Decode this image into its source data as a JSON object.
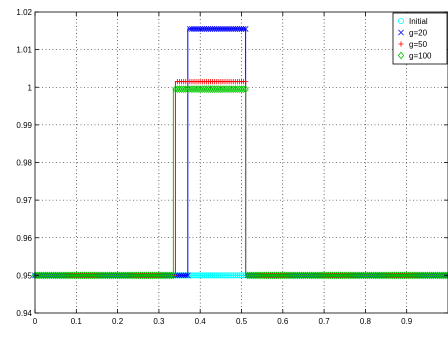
{
  "chart_data": {
    "type": "line",
    "title": "",
    "xlabel": "",
    "ylabel": "",
    "xlim": [
      0,
      1
    ],
    "ylim": [
      0.94,
      1.02
    ],
    "grid": true,
    "legend_position": "top-right",
    "x_ticks": [
      0,
      0.1,
      0.2,
      0.3,
      0.4,
      0.5,
      0.6,
      0.7,
      0.8,
      0.9
    ],
    "x_tick_labels": [
      "0",
      "0.1",
      "0.2",
      "0.3",
      "0.4",
      "0.5",
      "0.6",
      "0.7",
      "0.8",
      "0.9"
    ],
    "y_ticks": [
      0.94,
      0.95,
      0.96,
      0.97,
      0.98,
      0.99,
      1.0,
      1.01,
      1.02
    ],
    "y_tick_labels": [
      "0.94",
      "0.95",
      "0.96",
      "0.97",
      "0.98",
      "0.99",
      "1",
      "1.01",
      "1.02"
    ],
    "marker_spacing": 0.005,
    "series": [
      {
        "name": "Initial",
        "color": "#00ffff",
        "marker": "circle",
        "x": [
          0,
          0.33,
          0.33,
          0.5,
          0.5,
          1
        ],
        "y": [
          0.95,
          0.95,
          0.95,
          0.95,
          0.95,
          0.95
        ]
      },
      {
        "name": "g=20",
        "color": "#0000ff",
        "marker": "x",
        "x": [
          0,
          0.37,
          0.37,
          0.51,
          0.51,
          1
        ],
        "y": [
          0.95,
          0.95,
          1.0155,
          1.0155,
          0.95,
          0.95
        ]
      },
      {
        "name": "g=50",
        "color": "#ff0000",
        "marker": "plus",
        "x": [
          0,
          0.34,
          0.34,
          0.51,
          0.51,
          1
        ],
        "y": [
          0.95,
          0.95,
          1.0015,
          1.0015,
          0.95,
          0.95
        ]
      },
      {
        "name": "g=100",
        "color": "#00c800",
        "marker": "diamond",
        "x": [
          0,
          0.335,
          0.335,
          0.51,
          0.51,
          1
        ],
        "y": [
          0.95,
          0.95,
          0.9995,
          0.9995,
          0.95,
          0.95
        ]
      }
    ]
  }
}
